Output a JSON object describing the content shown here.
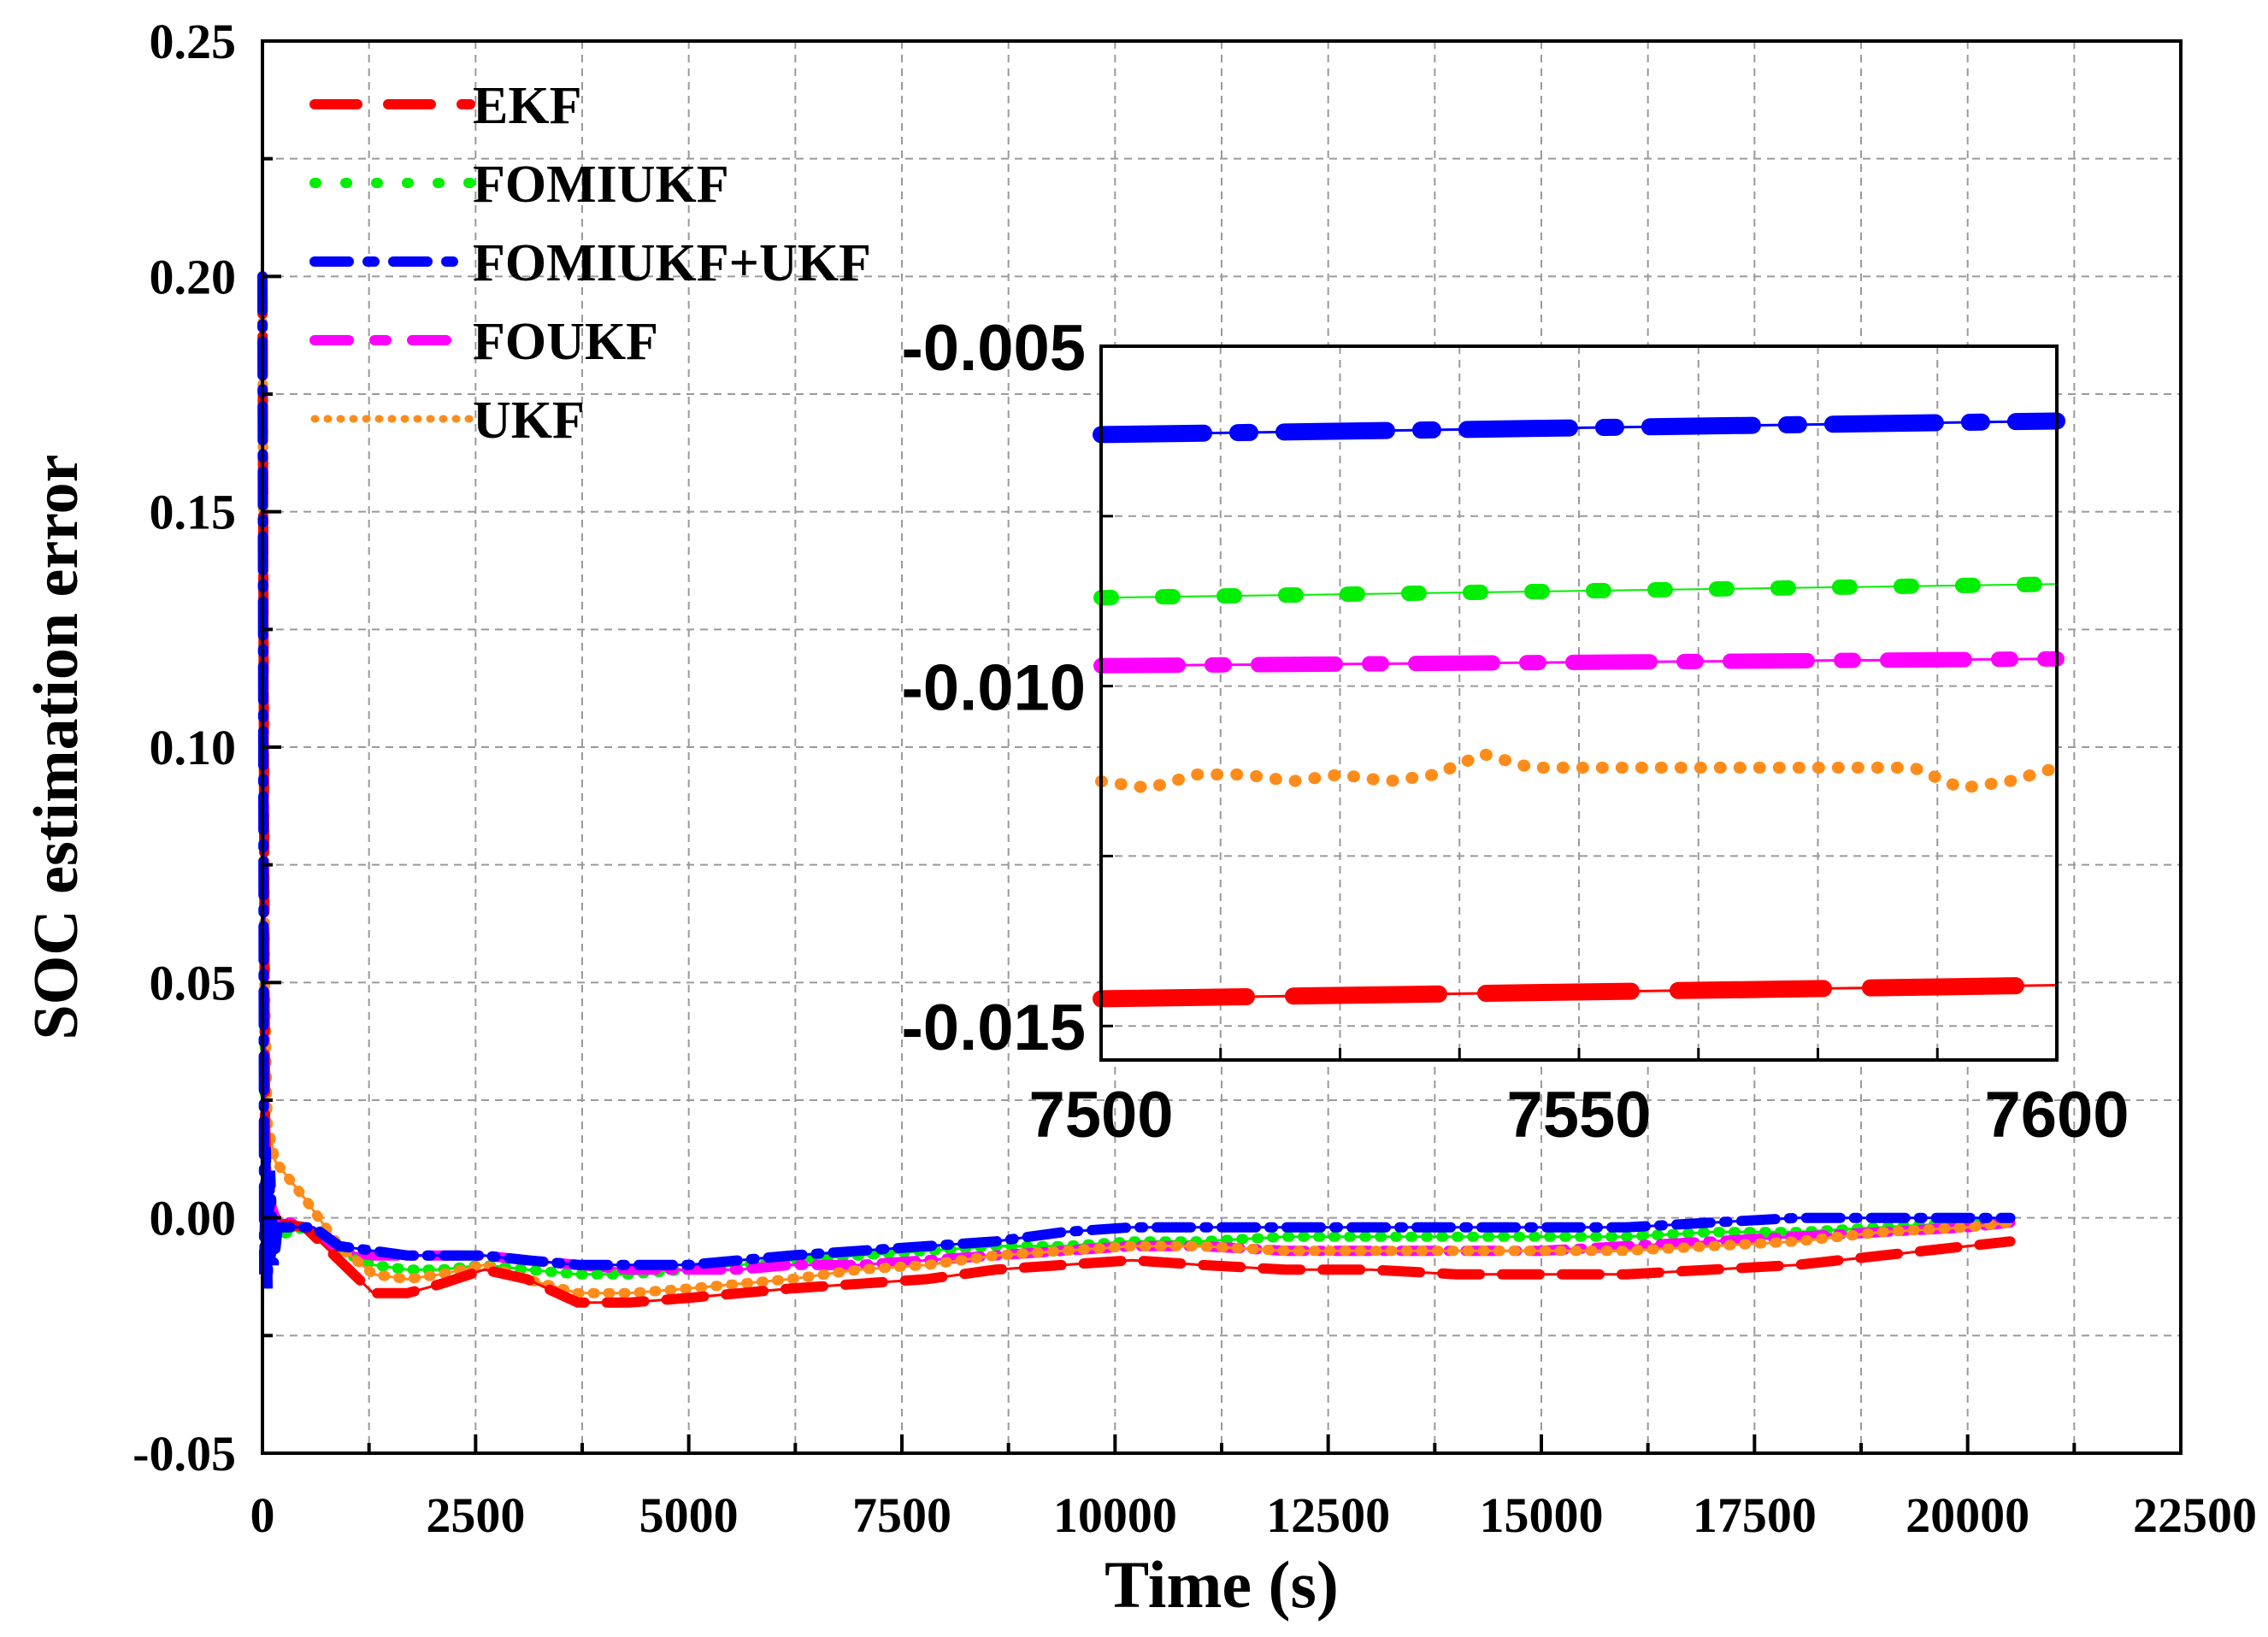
{
  "chart_data": {
    "type": "line",
    "title": "",
    "xlabel": "Time (s)",
    "ylabel": "SOC estimation error",
    "xlim": [
      0,
      22500
    ],
    "ylim": [
      -0.05,
      0.25
    ],
    "xticks": [
      0,
      2500,
      5000,
      7500,
      10000,
      12500,
      15000,
      17500,
      20000,
      22500
    ],
    "yticks": [
      -0.05,
      0.0,
      0.05,
      0.1,
      0.15,
      0.2,
      0.25
    ],
    "xtick_labels": [
      "0",
      "2500",
      "5000",
      "7500",
      "10000",
      "12500",
      "15000",
      "17500",
      "20000",
      "22500"
    ],
    "ytick_labels": [
      "-0.05",
      "0.00",
      "0.05",
      "0.10",
      "0.15",
      "0.20",
      "0.25"
    ],
    "grid": true,
    "legend_position": "top-left",
    "series": [
      {
        "name": "EKF",
        "color": "#ff0000",
        "style": "dash",
        "x": [
          0,
          30,
          60,
          150,
          500,
          900,
          1300,
          1700,
          2100,
          2600,
          3100,
          3700,
          4300,
          5000,
          5600,
          6200,
          7000,
          7800,
          8600,
          9400,
          10200,
          11000,
          12000,
          13000,
          14000,
          15000,
          16000,
          17000,
          18000,
          19000,
          20000,
          20500
        ],
        "y": [
          0.2,
          0.02,
          0.002,
          -0.001,
          -0.002,
          -0.009,
          -0.016,
          -0.016,
          -0.014,
          -0.011,
          -0.013,
          -0.018,
          -0.018,
          -0.017,
          -0.016,
          -0.015,
          -0.014,
          -0.013,
          -0.011,
          -0.01,
          -0.009,
          -0.01,
          -0.011,
          -0.011,
          -0.012,
          -0.012,
          -0.012,
          -0.011,
          -0.01,
          -0.008,
          -0.006,
          -0.005
        ]
      },
      {
        "name": "FOMIUKF",
        "color": "#00ee00",
        "style": "dot",
        "x": [
          0,
          30,
          60,
          150,
          500,
          900,
          1300,
          1700,
          2100,
          2600,
          3100,
          3700,
          4300,
          5000,
          5600,
          6200,
          7000,
          7800,
          8600,
          9400,
          10200,
          11000,
          12000,
          13000,
          14000,
          15000,
          16000,
          17000,
          18000,
          19000,
          20000,
          20500
        ],
        "y": [
          0.2,
          0.01,
          -0.005,
          -0.004,
          -0.002,
          -0.007,
          -0.01,
          -0.011,
          -0.011,
          -0.01,
          -0.011,
          -0.012,
          -0.012,
          -0.011,
          -0.01,
          -0.009,
          -0.008,
          -0.007,
          -0.006,
          -0.006,
          -0.005,
          -0.005,
          -0.004,
          -0.004,
          -0.004,
          -0.004,
          -0.004,
          -0.003,
          -0.003,
          -0.002,
          -0.001,
          -0.001
        ]
      },
      {
        "name": "FOMIUKF+UKF",
        "color": "#0000ff",
        "style": "dashdot",
        "x": [
          0,
          20,
          40,
          60,
          90,
          130,
          180,
          300,
          600,
          900,
          1300,
          1700,
          2100,
          2600,
          3100,
          3700,
          4300,
          5000,
          5600,
          6200,
          7000,
          7800,
          8600,
          9400,
          10200,
          11000,
          12000,
          13000,
          14000,
          15000,
          16000,
          17000,
          18000,
          19000,
          20000,
          20500
        ],
        "y": [
          0.2,
          -0.012,
          0.015,
          -0.015,
          0.01,
          -0.01,
          -0.002,
          -0.002,
          -0.002,
          -0.006,
          -0.007,
          -0.008,
          -0.008,
          -0.008,
          -0.009,
          -0.01,
          -0.01,
          -0.01,
          -0.009,
          -0.008,
          -0.007,
          -0.006,
          -0.005,
          -0.003,
          -0.002,
          -0.002,
          -0.002,
          -0.002,
          -0.002,
          -0.002,
          -0.002,
          -0.001,
          0.0,
          0.0,
          0.0,
          0.0
        ]
      },
      {
        "name": "FOUKF",
        "color": "#ff00ff",
        "style": "dashdot",
        "x": [
          0,
          30,
          60,
          150,
          500,
          900,
          1300,
          1700,
          2100,
          2600,
          3100,
          3700,
          4300,
          5000,
          5600,
          6200,
          7000,
          7800,
          8600,
          9400,
          10200,
          11000,
          12000,
          13000,
          14000,
          15000,
          16000,
          17000,
          18000,
          19000,
          20000,
          20500
        ],
        "y": [
          0.2,
          0.015,
          0.005,
          0.0,
          -0.002,
          -0.007,
          -0.008,
          -0.008,
          -0.008,
          -0.008,
          -0.009,
          -0.01,
          -0.011,
          -0.011,
          -0.011,
          -0.01,
          -0.01,
          -0.009,
          -0.008,
          -0.007,
          -0.006,
          -0.006,
          -0.007,
          -0.007,
          -0.007,
          -0.007,
          -0.006,
          -0.005,
          -0.004,
          -0.003,
          -0.002,
          -0.001
        ]
      },
      {
        "name": "UKF",
        "color": "#ff8c1a",
        "style": "dot",
        "x": [
          0,
          30,
          60,
          150,
          500,
          900,
          1300,
          1700,
          2100,
          2600,
          3100,
          3700,
          4300,
          5000,
          5600,
          6200,
          7000,
          7800,
          8600,
          9400,
          10200,
          11000,
          12000,
          13000,
          14000,
          15000,
          16000,
          17000,
          18000,
          19000,
          20000,
          20500
        ],
        "y": [
          0.2,
          0.05,
          0.02,
          0.012,
          0.004,
          -0.006,
          -0.012,
          -0.013,
          -0.012,
          -0.01,
          -0.013,
          -0.016,
          -0.016,
          -0.015,
          -0.014,
          -0.013,
          -0.011,
          -0.01,
          -0.008,
          -0.007,
          -0.006,
          -0.006,
          -0.007,
          -0.007,
          -0.007,
          -0.007,
          -0.007,
          -0.006,
          -0.005,
          -0.003,
          -0.002,
          -0.001
        ]
      }
    ],
    "inset": {
      "xlim": [
        7500,
        7600
      ],
      "ylim": [
        -0.0155,
        -0.005
      ],
      "xticks": [
        7500,
        7550,
        7600
      ],
      "yticks": [
        -0.005,
        -0.01,
        -0.015
      ],
      "xtick_labels": [
        "7500",
        "7550",
        "7600"
      ],
      "ytick_labels": [
        "-0.005",
        "-0.010",
        "-0.015"
      ],
      "series": [
        {
          "name": "FOMIUKF+UKF",
          "x": [
            7500,
            7600
          ],
          "y": [
            -0.0063,
            -0.0061
          ]
        },
        {
          "name": "FOMIUKF",
          "x": [
            7500,
            7600
          ],
          "y": [
            -0.0087,
            -0.0085
          ]
        },
        {
          "name": "FOUKF",
          "x": [
            7500,
            7600
          ],
          "y": [
            -0.0097,
            -0.0096
          ]
        },
        {
          "name": "UKF",
          "x": [
            7500,
            7505,
            7510,
            7515,
            7520,
            7525,
            7530,
            7535,
            7540,
            7545,
            7550,
            7560,
            7570,
            7580,
            7585,
            7590,
            7595,
            7600
          ],
          "y": [
            -0.0114,
            -0.0115,
            -0.0113,
            -0.0113,
            -0.0114,
            -0.0113,
            -0.0114,
            -0.0113,
            -0.011,
            -0.0112,
            -0.0112,
            -0.0112,
            -0.0112,
            -0.0112,
            -0.0112,
            -0.0115,
            -0.0114,
            -0.0112
          ]
        },
        {
          "name": "EKF",
          "x": [
            7500,
            7600
          ],
          "y": [
            -0.0146,
            -0.0144
          ]
        }
      ]
    }
  }
}
